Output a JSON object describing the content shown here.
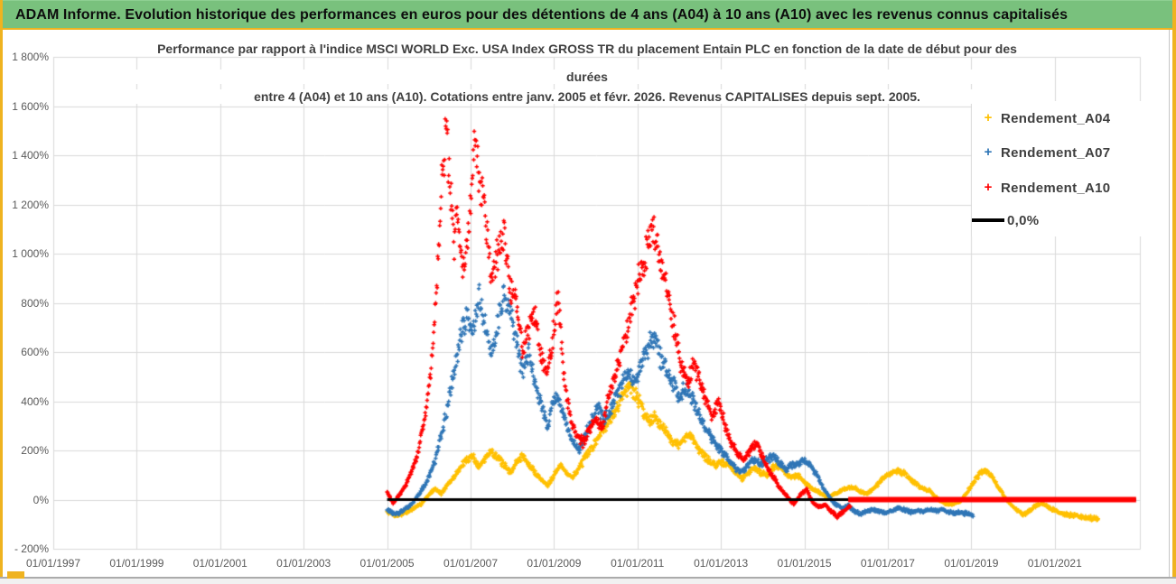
{
  "window": {
    "header_title": "ADAM Informe. Evolution historique des performances en euros pour des détentions de 4 ans (A04) à 10 ans (A10) avec les revenus connus capitalisés",
    "colors": {
      "header_green": "#79c17d",
      "accent_gold": "#efb320",
      "gridline": "#d9d9d9",
      "axis_text": "#595959",
      "title_text": "#404040"
    }
  },
  "chart_data": {
    "type": "scatter",
    "title_lines": [
      "Performance par rapport à l'indice MSCI WORLD Exc. USA Index GROSS TR  du placement Entain PLC en fonction de la date de début pour des",
      "durées",
      "entre 4 (A04) et 10 ans (A10). Cotations entre janv. 2005 et févr. 2026. Revenus CAPITALISES depuis sept. 2005."
    ],
    "x_axis": {
      "min_year": 1997.0,
      "max_year": 2023.04,
      "tick_interval_years": 2,
      "tick_labels": [
        "01/01/1997",
        "01/01/1999",
        "01/01/2001",
        "01/01/2003",
        "01/01/2005",
        "01/01/2007",
        "01/01/2009",
        "01/01/2011",
        "01/01/2013",
        "01/01/2015",
        "01/01/2017",
        "01/01/2019",
        "01/01/2021"
      ]
    },
    "y_axis": {
      "min": -200,
      "max": 1800,
      "step": 200,
      "tick_labels": [
        "1 800%",
        "1 600%",
        "1 400%",
        "1 200%",
        "1 000%",
        "800%",
        "600%",
        "400%",
        "200%",
        "0%",
        "- 200%"
      ]
    },
    "legend": [
      {
        "label": "Rendement_A04",
        "color": "#FFC000",
        "marker": "+"
      },
      {
        "label": "Rendement_A07",
        "color": "#2E75B6",
        "marker": "+"
      },
      {
        "label": "Rendement_A10",
        "color": "#FF0000",
        "marker": "+"
      },
      {
        "label": "0,0%",
        "color": "#000000",
        "marker": "line"
      }
    ],
    "grid": true,
    "zero_line": {
      "value": 0,
      "color": "#000000",
      "start_year": 2005.0,
      "end_year": 2022.95
    },
    "a10_flat_zero_segment": {
      "value": 0,
      "color": "#FF0000",
      "start_year": 2016.05,
      "end_year": 2022.95
    },
    "series": [
      {
        "name": "Rendement_A04",
        "color": "#FFC000",
        "seed": 7,
        "anchors": [
          [
            2005.0,
            -50
          ],
          [
            2005.2,
            -65
          ],
          [
            2005.4,
            -55
          ],
          [
            2005.6,
            -40
          ],
          [
            2005.8,
            -20
          ],
          [
            2006.0,
            20
          ],
          [
            2006.15,
            45
          ],
          [
            2006.3,
            25
          ],
          [
            2006.45,
            60
          ],
          [
            2006.6,
            90
          ],
          [
            2006.75,
            130
          ],
          [
            2006.9,
            160
          ],
          [
            2007.05,
            180
          ],
          [
            2007.2,
            130
          ],
          [
            2007.35,
            170
          ],
          [
            2007.5,
            200
          ],
          [
            2007.65,
            170
          ],
          [
            2007.8,
            140
          ],
          [
            2007.95,
            110
          ],
          [
            2008.1,
            150
          ],
          [
            2008.25,
            180
          ],
          [
            2008.4,
            140
          ],
          [
            2008.55,
            110
          ],
          [
            2008.7,
            80
          ],
          [
            2008.85,
            60
          ],
          [
            2009.0,
            100
          ],
          [
            2009.15,
            140
          ],
          [
            2009.3,
            110
          ],
          [
            2009.45,
            90
          ],
          [
            2009.6,
            130
          ],
          [
            2009.75,
            170
          ],
          [
            2009.9,
            210
          ],
          [
            2010.05,
            250
          ],
          [
            2010.2,
            290
          ],
          [
            2010.35,
            330
          ],
          [
            2010.5,
            380
          ],
          [
            2010.65,
            430
          ],
          [
            2010.8,
            460
          ],
          [
            2010.95,
            430
          ],
          [
            2011.1,
            380
          ],
          [
            2011.25,
            320
          ],
          [
            2011.4,
            340
          ],
          [
            2011.55,
            310
          ],
          [
            2011.7,
            270
          ],
          [
            2011.85,
            240
          ],
          [
            2012.0,
            220
          ],
          [
            2012.15,
            250
          ],
          [
            2012.3,
            260
          ],
          [
            2012.45,
            210
          ],
          [
            2012.6,
            180
          ],
          [
            2012.75,
            150
          ],
          [
            2012.9,
            140
          ],
          [
            2013.05,
            150
          ],
          [
            2013.2,
            140
          ],
          [
            2013.35,
            110
          ],
          [
            2013.5,
            85
          ],
          [
            2013.65,
            110
          ],
          [
            2013.8,
            130
          ],
          [
            2013.95,
            110
          ],
          [
            2014.1,
            100
          ],
          [
            2014.25,
            130
          ],
          [
            2014.4,
            140
          ],
          [
            2014.55,
            110
          ],
          [
            2014.7,
            90
          ],
          [
            2014.85,
            100
          ],
          [
            2015.0,
            70
          ],
          [
            2015.15,
            50
          ],
          [
            2015.3,
            35
          ],
          [
            2015.45,
            20
          ],
          [
            2015.6,
            10
          ],
          [
            2015.75,
            25
          ],
          [
            2015.9,
            40
          ],
          [
            2016.05,
            45
          ],
          [
            2016.2,
            50
          ],
          [
            2016.35,
            30
          ],
          [
            2016.5,
            25
          ],
          [
            2016.65,
            45
          ],
          [
            2016.8,
            70
          ],
          [
            2016.95,
            95
          ],
          [
            2017.1,
            110
          ],
          [
            2017.25,
            115
          ],
          [
            2017.4,
            110
          ],
          [
            2017.55,
            80
          ],
          [
            2017.7,
            60
          ],
          [
            2017.85,
            45
          ],
          [
            2018.0,
            35
          ],
          [
            2018.15,
            10
          ],
          [
            2018.3,
            -10
          ],
          [
            2018.45,
            -20
          ],
          [
            2018.6,
            -15
          ],
          [
            2018.75,
            -5
          ],
          [
            2018.9,
            30
          ],
          [
            2019.05,
            70
          ],
          [
            2019.2,
            105
          ],
          [
            2019.35,
            120
          ],
          [
            2019.5,
            90
          ],
          [
            2019.65,
            50
          ],
          [
            2019.8,
            10
          ],
          [
            2019.95,
            -20
          ],
          [
            2020.1,
            -45
          ],
          [
            2020.25,
            -60
          ],
          [
            2020.4,
            -45
          ],
          [
            2020.55,
            -25
          ],
          [
            2020.7,
            -15
          ],
          [
            2020.85,
            -30
          ],
          [
            2021.0,
            -45
          ],
          [
            2021.15,
            -55
          ],
          [
            2021.3,
            -60
          ],
          [
            2021.45,
            -65
          ],
          [
            2021.6,
            -70
          ],
          [
            2021.75,
            -72
          ],
          [
            2021.9,
            -78
          ],
          [
            2022.05,
            -80
          ]
        ]
      },
      {
        "name": "Rendement_A07",
        "color": "#2E75B6",
        "seed": 13,
        "anchors": [
          [
            2005.0,
            -40
          ],
          [
            2005.2,
            -60
          ],
          [
            2005.4,
            -45
          ],
          [
            2005.6,
            -15
          ],
          [
            2005.8,
            30
          ],
          [
            2006.0,
            90
          ],
          [
            2006.15,
            160
          ],
          [
            2006.3,
            260
          ],
          [
            2006.45,
            380
          ],
          [
            2006.6,
            520
          ],
          [
            2006.75,
            650
          ],
          [
            2006.9,
            750
          ],
          [
            2007.05,
            680
          ],
          [
            2007.2,
            820
          ],
          [
            2007.35,
            700
          ],
          [
            2007.5,
            600
          ],
          [
            2007.65,
            720
          ],
          [
            2007.8,
            840
          ],
          [
            2007.95,
            760
          ],
          [
            2008.1,
            640
          ],
          [
            2008.25,
            520
          ],
          [
            2008.4,
            600
          ],
          [
            2008.55,
            480
          ],
          [
            2008.7,
            380
          ],
          [
            2008.85,
            300
          ],
          [
            2009.0,
            420
          ],
          [
            2009.15,
            380
          ],
          [
            2009.3,
            300
          ],
          [
            2009.45,
            230
          ],
          [
            2009.6,
            200
          ],
          [
            2009.75,
            260
          ],
          [
            2009.9,
            320
          ],
          [
            2010.05,
            380
          ],
          [
            2010.2,
            320
          ],
          [
            2010.35,
            360
          ],
          [
            2010.5,
            420
          ],
          [
            2010.65,
            470
          ],
          [
            2010.8,
            520
          ],
          [
            2010.95,
            480
          ],
          [
            2011.1,
            560
          ],
          [
            2011.25,
            620
          ],
          [
            2011.4,
            670
          ],
          [
            2011.55,
            580
          ],
          [
            2011.7,
            520
          ],
          [
            2011.85,
            470
          ],
          [
            2012.0,
            420
          ],
          [
            2012.15,
            460
          ],
          [
            2012.3,
            420
          ],
          [
            2012.45,
            360
          ],
          [
            2012.6,
            300
          ],
          [
            2012.75,
            260
          ],
          [
            2012.9,
            220
          ],
          [
            2013.05,
            190
          ],
          [
            2013.2,
            160
          ],
          [
            2013.35,
            130
          ],
          [
            2013.5,
            110
          ],
          [
            2013.65,
            140
          ],
          [
            2013.8,
            160
          ],
          [
            2013.95,
            140
          ],
          [
            2014.1,
            160
          ],
          [
            2014.25,
            180
          ],
          [
            2014.4,
            150
          ],
          [
            2014.55,
            120
          ],
          [
            2014.7,
            140
          ],
          [
            2014.85,
            150
          ],
          [
            2015.0,
            160
          ],
          [
            2015.15,
            140
          ],
          [
            2015.3,
            100
          ],
          [
            2015.45,
            50
          ],
          [
            2015.6,
            10
          ],
          [
            2015.75,
            -20
          ],
          [
            2015.9,
            -35
          ],
          [
            2016.05,
            -25
          ],
          [
            2016.2,
            -50
          ],
          [
            2016.35,
            -60
          ],
          [
            2016.5,
            -45
          ],
          [
            2016.65,
            -40
          ],
          [
            2016.8,
            -50
          ],
          [
            2016.95,
            -55
          ],
          [
            2017.1,
            -45
          ],
          [
            2017.25,
            -35
          ],
          [
            2017.4,
            -40
          ],
          [
            2017.55,
            -50
          ],
          [
            2017.7,
            -45
          ],
          [
            2017.85,
            -50
          ],
          [
            2018.0,
            -40
          ],
          [
            2018.15,
            -45
          ],
          [
            2018.3,
            -40
          ],
          [
            2018.45,
            -50
          ],
          [
            2018.6,
            -55
          ],
          [
            2018.75,
            -50
          ],
          [
            2018.9,
            -58
          ],
          [
            2019.05,
            -60
          ]
        ]
      },
      {
        "name": "Rendement_A10",
        "color": "#FF0000",
        "seed": 29,
        "anchors": [
          [
            2005.0,
            30
          ],
          [
            2005.15,
            -15
          ],
          [
            2005.3,
            20
          ],
          [
            2005.45,
            60
          ],
          [
            2005.6,
            120
          ],
          [
            2005.75,
            200
          ],
          [
            2005.9,
            320
          ],
          [
            2006.05,
            520
          ],
          [
            2006.2,
            900
          ],
          [
            2006.3,
            1250
          ],
          [
            2006.42,
            1520
          ],
          [
            2006.5,
            1280
          ],
          [
            2006.6,
            1050
          ],
          [
            2006.7,
            1180
          ],
          [
            2006.8,
            950
          ],
          [
            2006.95,
            1080
          ],
          [
            2007.1,
            1460
          ],
          [
            2007.2,
            1350
          ],
          [
            2007.35,
            1150
          ],
          [
            2007.5,
            900
          ],
          [
            2007.65,
            1000
          ],
          [
            2007.8,
            1080
          ],
          [
            2007.95,
            870
          ],
          [
            2008.1,
            780
          ],
          [
            2008.25,
            620
          ],
          [
            2008.4,
            700
          ],
          [
            2008.55,
            760
          ],
          [
            2008.7,
            580
          ],
          [
            2008.85,
            520
          ],
          [
            2009.0,
            700
          ],
          [
            2009.1,
            820
          ],
          [
            2009.25,
            480
          ],
          [
            2009.4,
            330
          ],
          [
            2009.55,
            260
          ],
          [
            2009.7,
            230
          ],
          [
            2009.85,
            280
          ],
          [
            2010.0,
            330
          ],
          [
            2010.15,
            290
          ],
          [
            2010.3,
            420
          ],
          [
            2010.45,
            500
          ],
          [
            2010.6,
            580
          ],
          [
            2010.75,
            700
          ],
          [
            2010.9,
            820
          ],
          [
            2011.05,
            920
          ],
          [
            2011.2,
            1000
          ],
          [
            2011.35,
            1120
          ],
          [
            2011.45,
            1050
          ],
          [
            2011.6,
            950
          ],
          [
            2011.75,
            800
          ],
          [
            2011.9,
            680
          ],
          [
            2012.05,
            540
          ],
          [
            2012.2,
            480
          ],
          [
            2012.35,
            560
          ],
          [
            2012.5,
            470
          ],
          [
            2012.65,
            400
          ],
          [
            2012.8,
            330
          ],
          [
            2012.95,
            400
          ],
          [
            2013.1,
            300
          ],
          [
            2013.25,
            230
          ],
          [
            2013.4,
            190
          ],
          [
            2013.55,
            160
          ],
          [
            2013.7,
            200
          ],
          [
            2013.85,
            230
          ],
          [
            2014.0,
            170
          ],
          [
            2014.15,
            120
          ],
          [
            2014.3,
            80
          ],
          [
            2014.45,
            40
          ],
          [
            2014.6,
            10
          ],
          [
            2014.75,
            -20
          ],
          [
            2014.9,
            20
          ],
          [
            2015.05,
            40
          ],
          [
            2015.2,
            -10
          ],
          [
            2015.35,
            -30
          ],
          [
            2015.5,
            -20
          ],
          [
            2015.65,
            -50
          ],
          [
            2015.8,
            -70
          ],
          [
            2015.95,
            -45
          ],
          [
            2016.1,
            -25
          ]
        ]
      }
    ]
  }
}
